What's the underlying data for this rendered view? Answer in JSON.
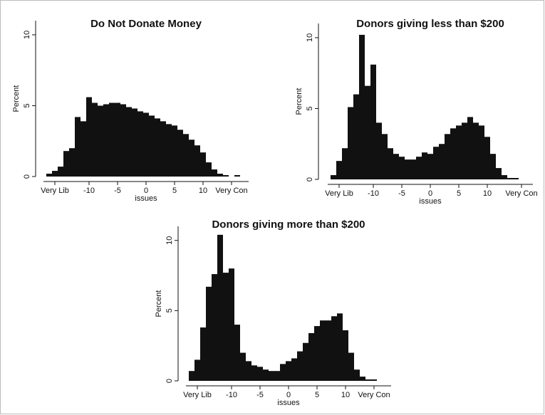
{
  "chart_data": [
    {
      "type": "histogram",
      "title": "Do Not Donate Money",
      "xlabel": "issues",
      "ylabel": "Percent",
      "color": "#111111",
      "bins": [
        -17.5,
        -16.5,
        -15.5,
        -14.5,
        -13.5,
        -12.5,
        -11.5,
        -10.5,
        -9.5,
        -8.5,
        -7.5,
        -6.5,
        -5.5,
        -4.5,
        -3.5,
        -2.5,
        -1.5,
        -0.5,
        0.5,
        1.5,
        2.5,
        3.5,
        4.5,
        5.5,
        6.5,
        7.5,
        8.5,
        9.5,
        10.5,
        11.5,
        12.5,
        13.5,
        14.5,
        15.5,
        16.5,
        17.5
      ],
      "values": [
        0.2,
        0.4,
        0.7,
        1.8,
        2.0,
        4.2,
        3.9,
        5.6,
        5.2,
        5.0,
        5.1,
        5.2,
        5.2,
        5.1,
        4.9,
        4.8,
        4.6,
        4.5,
        4.3,
        4.1,
        3.9,
        3.7,
        3.6,
        3.3,
        3.0,
        2.6,
        2.2,
        1.7,
        1.0,
        0.5,
        0.2,
        0.1,
        0,
        0.1,
        0
      ],
      "xlim": [
        -18,
        18
      ],
      "ylim": [
        0,
        11
      ],
      "xticks": [
        {
          "value": -16,
          "label": "Very Lib"
        },
        -10,
        -5,
        0,
        5,
        10,
        {
          "value": 15,
          "label": "Very Con"
        }
      ],
      "yticks": [
        0,
        5,
        10
      ]
    },
    {
      "type": "histogram",
      "title": "Donors giving less than $200",
      "xlabel": "issues",
      "ylabel": "Percent",
      "color": "#111111",
      "bins": [
        -17.5,
        -16.5,
        -15.5,
        -14.5,
        -13.5,
        -12.5,
        -11.5,
        -10.5,
        -9.5,
        -8.5,
        -7.5,
        -6.5,
        -5.5,
        -4.5,
        -3.5,
        -2.5,
        -1.5,
        -0.5,
        0.5,
        1.5,
        2.5,
        3.5,
        4.5,
        5.5,
        6.5,
        7.5,
        8.5,
        9.5,
        10.5,
        11.5,
        12.5,
        13.5,
        14.5,
        15.5,
        16.5,
        17.5
      ],
      "values": [
        0.3,
        1.3,
        2.2,
        5.1,
        6.0,
        10.2,
        6.6,
        8.1,
        4.0,
        3.2,
        2.2,
        1.8,
        1.6,
        1.4,
        1.4,
        1.6,
        1.9,
        1.8,
        2.3,
        2.5,
        3.2,
        3.6,
        3.8,
        4.0,
        4.4,
        4.0,
        3.8,
        3.0,
        1.8,
        0.8,
        0.3,
        0.1,
        0.1,
        0,
        0
      ],
      "xlim": [
        -18,
        18
      ],
      "ylim": [
        0,
        11
      ],
      "xticks": [
        {
          "value": -16,
          "label": "Very Lib"
        },
        -10,
        -5,
        0,
        5,
        10,
        {
          "value": 16,
          "label": "Very Con"
        }
      ],
      "yticks": [
        0,
        5,
        10
      ]
    },
    {
      "type": "histogram",
      "title": "Donors giving more than $200",
      "xlabel": "issues",
      "ylabel": "Percent",
      "color": "#111111",
      "bins": [
        -17.5,
        -16.5,
        -15.5,
        -14.5,
        -13.5,
        -12.5,
        -11.5,
        -10.5,
        -9.5,
        -8.5,
        -7.5,
        -6.5,
        -5.5,
        -4.5,
        -3.5,
        -2.5,
        -1.5,
        -0.5,
        0.5,
        1.5,
        2.5,
        3.5,
        4.5,
        5.5,
        6.5,
        7.5,
        8.5,
        9.5,
        10.5,
        11.5,
        12.5,
        13.5,
        14.5,
        15.5,
        16.5,
        17.5
      ],
      "values": [
        0.7,
        1.5,
        3.8,
        6.7,
        7.6,
        10.4,
        7.7,
        8.0,
        4.0,
        2.0,
        1.4,
        1.1,
        1.0,
        0.8,
        0.7,
        0.7,
        1.2,
        1.4,
        1.6,
        2.1,
        2.7,
        3.4,
        3.9,
        4.3,
        4.3,
        4.6,
        4.8,
        3.6,
        2.0,
        0.8,
        0.3,
        0.1,
        0.1,
        0,
        0
      ],
      "xlim": [
        -18,
        18
      ],
      "ylim": [
        0,
        11
      ],
      "xticks": [
        {
          "value": -16,
          "label": "Very Lib"
        },
        -10,
        -5,
        0,
        5,
        10,
        {
          "value": 15,
          "label": "Very Con"
        }
      ],
      "yticks": [
        0,
        5,
        10
      ]
    }
  ]
}
